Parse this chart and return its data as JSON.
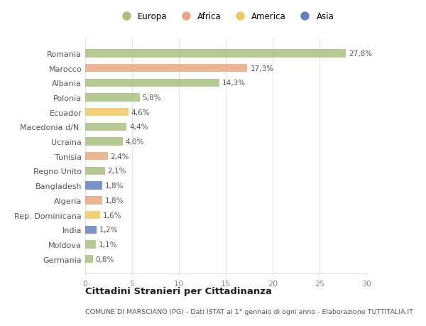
{
  "categories": [
    "Romania",
    "Marocco",
    "Albania",
    "Polonia",
    "Ecuador",
    "Macedonia d/N.",
    "Ucraina",
    "Tunisia",
    "Regno Unito",
    "Bangladesh",
    "Algeria",
    "Rep. Dominicana",
    "India",
    "Moldova",
    "Germania"
  ],
  "values": [
    27.8,
    17.3,
    14.3,
    5.8,
    4.6,
    4.4,
    4.0,
    2.4,
    2.1,
    1.8,
    1.8,
    1.6,
    1.2,
    1.1,
    0.8
  ],
  "labels": [
    "27,8%",
    "17,3%",
    "14,3%",
    "5,8%",
    "4,6%",
    "4,4%",
    "4,0%",
    "2,4%",
    "2,1%",
    "1,8%",
    "1,8%",
    "1,6%",
    "1,2%",
    "1,1%",
    "0,8%"
  ],
  "continents": [
    "Europa",
    "Africa",
    "Europa",
    "Europa",
    "America",
    "Europa",
    "Europa",
    "Africa",
    "Europa",
    "Asia",
    "Africa",
    "America",
    "Asia",
    "Europa",
    "Europa"
  ],
  "colors": {
    "Europa": "#a8c080",
    "Africa": "#e8a882",
    "America": "#f0c860",
    "Asia": "#6080c0"
  },
  "legend_order": [
    "Europa",
    "Africa",
    "America",
    "Asia"
  ],
  "title": "Cittadini Stranieri per Cittadinanza",
  "subtitle": "COMUNE DI MARSCIANO (PG) - Dati ISTAT al 1° gennaio di ogni anno - Elaborazione TUTTITALIA.IT",
  "xlim": [
    0,
    30
  ],
  "xticks": [
    0,
    5,
    10,
    15,
    20,
    25,
    30
  ],
  "background_color": "#ffffff",
  "plot_bg_color": "#ffffff",
  "bar_height": 0.55,
  "grid_color": "#e0e0e0",
  "label_color": "#555555",
  "tick_color": "#888888"
}
